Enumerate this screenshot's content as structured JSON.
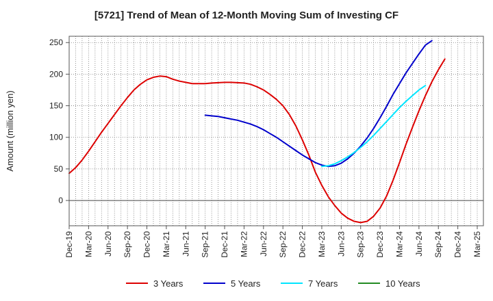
{
  "chart_data": {
    "type": "line",
    "title": "[5721]  Trend of Mean of 12-Month Moving Sum of Investing CF",
    "xlabel": "",
    "ylabel": "Amount (million yen)",
    "ylim": [
      -40,
      260
    ],
    "y_ticks": [
      0,
      50,
      100,
      150,
      200,
      250
    ],
    "x_tick_labels": [
      "Dec-19",
      "Mar-20",
      "Jun-20",
      "Sep-20",
      "Dec-20",
      "Mar-21",
      "Jun-21",
      "Sep-21",
      "Dec-21",
      "Mar-22",
      "Jun-22",
      "Sep-22",
      "Dec-22",
      "Mar-23",
      "Jun-23",
      "Sep-23",
      "Dec-23",
      "Mar-24",
      "Jun-24",
      "Sep-24",
      "Dec-24",
      "Mar-25"
    ],
    "grid": true,
    "legend_position": "bottom",
    "series": [
      {
        "name": "3 Years",
        "color": "#dd0000",
        "start_index": 0,
        "values": [
          43,
          52,
          64,
          78,
          93,
          108,
          122,
          136,
          150,
          163,
          175,
          184,
          191,
          195,
          197,
          196,
          192,
          189,
          187,
          185,
          185,
          185,
          186,
          186.5,
          187,
          187,
          186.5,
          186,
          184,
          180,
          175,
          168,
          160,
          150,
          136,
          118,
          96,
          72,
          45,
          24,
          6,
          -8,
          -20,
          -28,
          -33,
          -35,
          -33,
          -25,
          -12,
          7,
          32,
          60,
          89,
          116,
          142,
          166,
          188,
          207,
          224
        ]
      },
      {
        "name": "5 Years",
        "color": "#0000cc",
        "start_index": 21,
        "values": [
          135,
          134,
          133,
          131,
          129,
          127,
          124,
          121,
          117,
          112,
          106,
          100,
          93,
          86,
          79,
          72,
          66,
          60,
          56,
          54,
          55,
          59,
          66,
          75,
          86,
          99,
          114,
          131,
          149,
          168,
          185,
          202,
          217,
          232,
          246,
          253
        ]
      },
      {
        "name": "7 Years",
        "color": "#00e5ff",
        "start_index": 39,
        "values": [
          54,
          55,
          58,
          63,
          69,
          76,
          84,
          93,
          103,
          114,
          125,
          136,
          147,
          157,
          166,
          175,
          182
        ]
      },
      {
        "name": "10 Years",
        "color": "#228B22",
        "start_index": 0,
        "values": []
      }
    ]
  }
}
